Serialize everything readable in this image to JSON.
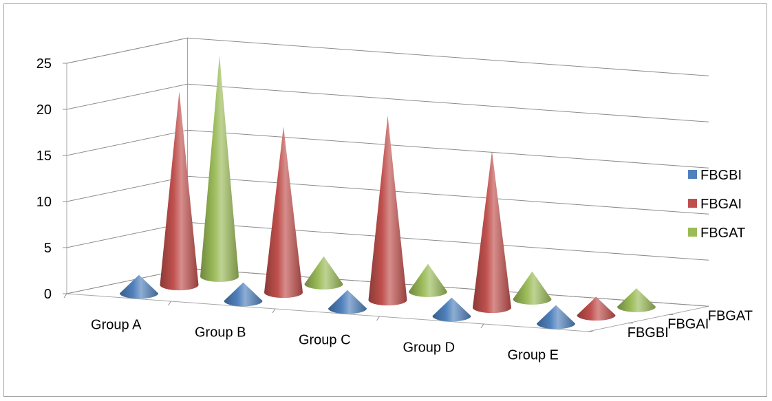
{
  "chart_data": {
    "type": "bar",
    "shape": "cone-3d",
    "title": "",
    "xlabel": "",
    "ylabel": "",
    "ylim": [
      0,
      25
    ],
    "yticks": [
      0,
      5,
      10,
      15,
      20,
      25
    ],
    "grid": true,
    "legend_position": "right",
    "categories": [
      "Group A",
      "Group B",
      "Group C",
      "Group D",
      "Group E"
    ],
    "series_axis_labels": [
      "FBGBI",
      "FBGAI",
      "FBGAT"
    ],
    "series": [
      {
        "name": "FBGBI",
        "color": "#4f81bd",
        "values": [
          2,
          2,
          2,
          2,
          2
        ]
      },
      {
        "name": "FBGAI",
        "color": "#c0504d",
        "values": [
          21,
          18,
          20,
          17,
          2
        ]
      },
      {
        "name": "FBGAT",
        "color": "#9bbb59",
        "values": [
          24,
          3,
          3,
          3,
          2
        ]
      }
    ]
  }
}
